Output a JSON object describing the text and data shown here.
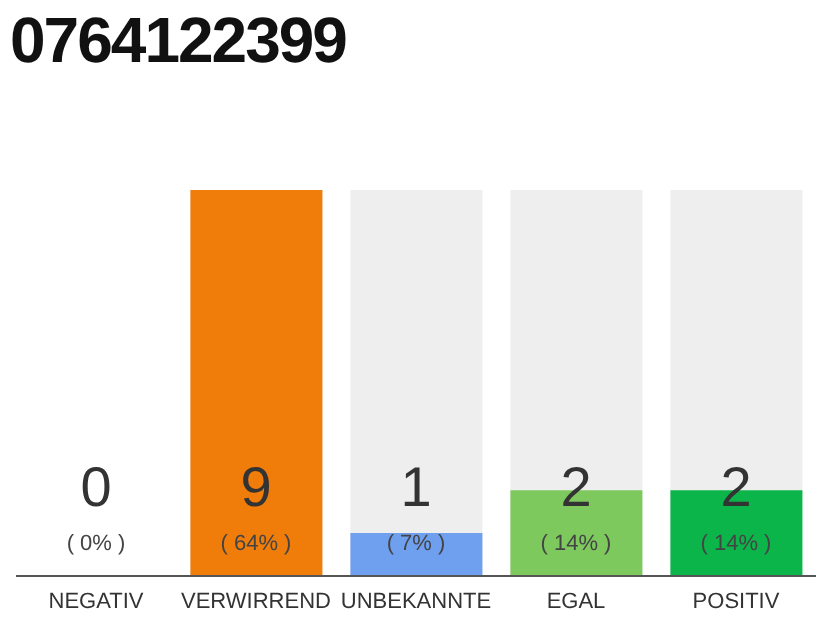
{
  "chart_data": {
    "type": "bar",
    "title": "0764122399",
    "categories": [
      "NEGATIV",
      "VERWIRREND",
      "UNBEKANNTE",
      "EGAL",
      "POSITIV"
    ],
    "values": [
      0,
      9,
      1,
      2,
      2
    ],
    "colors": [
      "#e0443c",
      "#f07c0a",
      "#6fa0f0",
      "#7dc95e",
      "#0bb54a"
    ],
    "data_labels": true,
    "annotations": [
      "( 0% )",
      "( 64% )",
      "( 7% )",
      "( 14% )",
      "( 14% )"
    ],
    "grid": false,
    "legend": false
  }
}
